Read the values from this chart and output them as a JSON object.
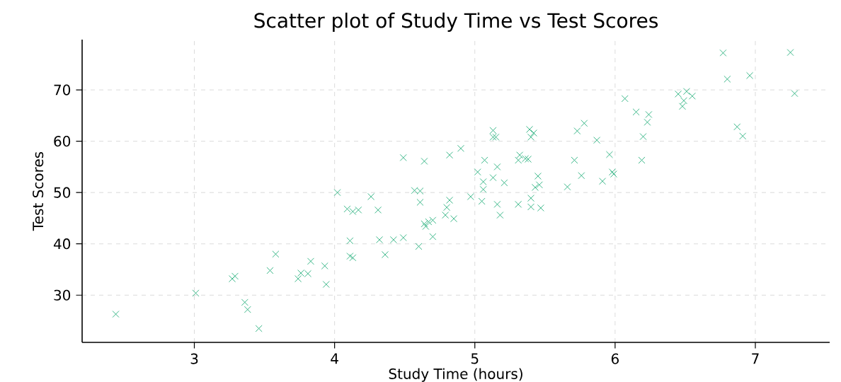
{
  "chart_data": {
    "type": "scatter",
    "title": "Scatter plot of Study Time vs Test Scores",
    "xlabel": "Study Time (hours)",
    "ylabel": "Test Scores",
    "marker": "cross",
    "grid": true,
    "xlim": [
      2.2,
      7.53
    ],
    "ylim": [
      20.8,
      79.8
    ],
    "xticks": [
      3,
      4,
      5,
      6,
      7
    ],
    "yticks": [
      30,
      40,
      50,
      60,
      70
    ],
    "series": [
      {
        "color": "#3cb88a",
        "x": [
          2.44,
          3.01,
          3.27,
          3.29,
          3.36,
          3.38,
          3.46,
          3.54,
          3.58,
          3.74,
          3.76,
          3.81,
          3.83,
          3.93,
          3.94,
          4.02,
          4.09,
          4.13,
          4.17,
          4.31,
          4.26,
          4.11,
          4.11,
          4.13,
          4.32,
          4.42,
          4.49,
          4.36,
          4.6,
          4.49,
          4.64,
          4.57,
          4.61,
          4.61,
          4.64,
          4.67,
          4.7,
          4.65,
          4.7,
          4.79,
          4.82,
          4.8,
          4.85,
          4.82,
          4.9,
          4.97,
          5.02,
          5.07,
          5.06,
          5.06,
          5.05,
          5.13,
          5.13,
          5.15,
          5.16,
          5.13,
          5.21,
          5.16,
          5.18,
          5.31,
          5.32,
          5.31,
          5.36,
          5.38,
          5.39,
          5.42,
          5.4,
          5.45,
          5.46,
          5.43,
          5.4,
          5.4,
          5.47,
          5.66,
          5.71,
          5.73,
          5.78,
          5.76,
          5.87,
          5.91,
          5.96,
          5.98,
          5.99,
          6.07,
          6.15,
          6.24,
          6.23,
          6.2,
          6.19,
          6.45,
          6.51,
          6.55,
          6.49,
          6.48,
          6.77,
          6.8,
          6.96,
          6.87,
          6.91,
          7.25,
          7.28
        ],
        "values": [
          26.3,
          30.4,
          33.2,
          33.7,
          28.6,
          27.2,
          23.5,
          34.8,
          38.0,
          33.2,
          34.3,
          34.2,
          36.6,
          35.7,
          32.1,
          50.0,
          46.8,
          46.3,
          46.6,
          46.6,
          49.2,
          40.6,
          37.6,
          37.3,
          40.8,
          40.8,
          41.2,
          37.9,
          39.5,
          56.8,
          56.1,
          50.4,
          50.3,
          48.1,
          43.9,
          44.3,
          44.6,
          43.4,
          41.4,
          45.6,
          48.5,
          47.1,
          44.9,
          57.3,
          58.6,
          49.2,
          54.0,
          56.3,
          52.1,
          50.6,
          48.3,
          62.1,
          60.8,
          60.8,
          55.0,
          52.9,
          51.9,
          47.7,
          45.6,
          47.7,
          57.3,
          56.3,
          56.6,
          56.5,
          62.3,
          61.6,
          60.8,
          53.2,
          51.5,
          51.0,
          48.9,
          47.2,
          47.0,
          51.1,
          56.3,
          62.0,
          63.5,
          53.3,
          60.2,
          52.2,
          57.4,
          54.0,
          53.6,
          68.3,
          65.7,
          65.2,
          63.7,
          60.9,
          56.3,
          69.2,
          69.7,
          68.8,
          67.9,
          66.8,
          77.2,
          72.1,
          72.8,
          62.8,
          61.0,
          77.3,
          69.3
        ]
      }
    ]
  }
}
